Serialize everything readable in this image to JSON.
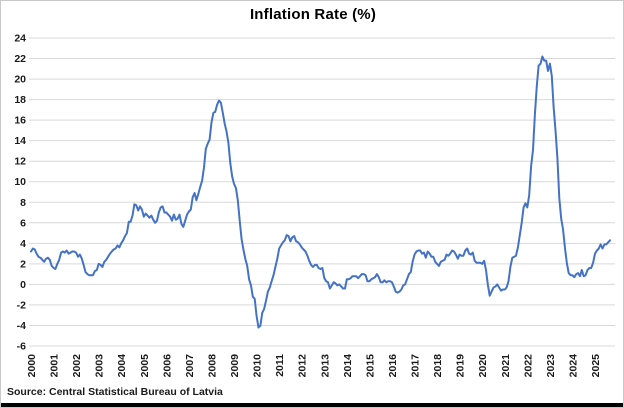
{
  "title": "Inflation Rate (%)",
  "source": "Source: Central Statistical Bureau of Latvia",
  "colors": {
    "line": "#4472C4",
    "gridline": "#D9D9D9",
    "text": "#1a1a1a",
    "background": "#FFFFFF",
    "bottom_border": "#000000"
  },
  "chart_data": {
    "type": "line",
    "title": "Inflation Rate (%)",
    "xlabel": "",
    "ylabel": "",
    "legend": "none",
    "grid": "horizontal",
    "ylim": [
      -6,
      24
    ],
    "y_ticks": [
      24,
      22,
      20,
      18,
      16,
      14,
      12,
      10,
      8,
      6,
      4,
      2,
      0,
      -2,
      -4,
      -6
    ],
    "x_tick_labels": [
      "2000",
      "2001",
      "2002",
      "2003",
      "2004",
      "2005",
      "2006",
      "2007",
      "2008",
      "2009",
      "2010",
      "2011",
      "2012",
      "2013",
      "2014",
      "2015",
      "2016",
      "2017",
      "2018",
      "2019",
      "2020",
      "2021",
      "2022",
      "2023",
      "2024",
      "2025"
    ],
    "frequency": "monthly",
    "start_year": 2000,
    "start_month": 1,
    "series_name": "Inflation Rate (%)",
    "values_by_year": {
      "2000": [
        3.2,
        3.5,
        3.4,
        3.0,
        2.7,
        2.6,
        2.4,
        2.2,
        2.5,
        2.6,
        2.4,
        1.8
      ],
      "2001": [
        1.6,
        1.5,
        2.0,
        2.4,
        3.1,
        3.2,
        3.1,
        3.3,
        3.0,
        3.1,
        3.2,
        3.2
      ],
      "2002": [
        3.1,
        2.7,
        2.9,
        2.5,
        1.9,
        1.2,
        1.0,
        0.9,
        0.9,
        0.9,
        1.3,
        1.4
      ],
      "2003": [
        2.0,
        1.9,
        1.7,
        2.2,
        2.4,
        2.7,
        3.0,
        3.2,
        3.4,
        3.5,
        3.8,
        3.6
      ],
      "2004": [
        4.0,
        4.3,
        4.7,
        5.0,
        6.1,
        6.1,
        6.7,
        7.8,
        7.7,
        7.2,
        7.6,
        7.3
      ],
      "2005": [
        6.6,
        6.9,
        6.7,
        6.5,
        6.7,
        6.3,
        6.0,
        6.2,
        7.0,
        7.5,
        7.6,
        7.0
      ],
      "2006": [
        7.0,
        6.8,
        6.6,
        6.2,
        6.8,
        6.3,
        6.4,
        6.8,
        5.9,
        5.6,
        6.2,
        6.8
      ],
      "2007": [
        7.1,
        7.3,
        8.5,
        8.9,
        8.2,
        8.8,
        9.5,
        10.1,
        11.4,
        13.2,
        13.7,
        14.1
      ],
      "2008": [
        15.8,
        16.7,
        16.8,
        17.5,
        17.9,
        17.7,
        16.7,
        15.7,
        14.9,
        13.8,
        11.8,
        10.5
      ],
      "2009": [
        9.8,
        9.4,
        8.2,
        6.2,
        4.4,
        3.4,
        2.5,
        1.8,
        0.5,
        -0.1,
        -1.2,
        -1.4
      ],
      "2010": [
        -3.1,
        -4.2,
        -4.0,
        -2.8,
        -2.4,
        -1.6,
        -0.7,
        -0.3,
        0.3,
        0.9,
        1.7,
        2.5
      ],
      "2011": [
        3.5,
        3.8,
        4.1,
        4.3,
        4.8,
        4.7,
        4.2,
        4.6,
        4.7,
        4.2,
        4.1,
        3.9
      ],
      "2012": [
        3.6,
        3.4,
        3.2,
        2.8,
        2.3,
        1.9,
        1.7,
        1.9,
        1.9,
        1.6,
        1.5,
        1.6
      ],
      "2013": [
        0.6,
        0.3,
        0.2,
        -0.4,
        -0.1,
        0.2,
        0.1,
        -0.1,
        0.0,
        -0.2,
        -0.4,
        -0.4
      ],
      "2014": [
        0.5,
        0.5,
        0.6,
        0.8,
        0.8,
        0.8,
        0.6,
        0.8,
        1.0,
        1.0,
        0.9,
        0.3
      ],
      "2015": [
        0.3,
        0.5,
        0.6,
        0.7,
        1.0,
        0.7,
        0.2,
        0.2,
        0.4,
        0.2,
        0.3,
        0.3
      ],
      "2016": [
        0.2,
        -0.2,
        -0.7,
        -0.8,
        -0.7,
        -0.5,
        -0.1,
        0.0,
        0.5,
        1.0,
        1.2,
        2.2
      ],
      "2017": [
        2.9,
        3.2,
        3.3,
        3.3,
        3.0,
        3.1,
        2.6,
        3.2,
        3.0,
        2.7,
        2.7,
        2.2
      ],
      "2018": [
        2.0,
        1.8,
        2.2,
        2.3,
        2.4,
        2.9,
        2.8,
        3.0,
        3.3,
        3.2,
        2.9,
        2.5
      ],
      "2019": [
        2.9,
        2.8,
        2.8,
        3.3,
        3.5,
        3.0,
        2.9,
        3.1,
        2.3,
        2.1,
        2.1,
        2.1
      ],
      "2020": [
        2.0,
        2.3,
        1.4,
        0.0,
        -1.1,
        -0.7,
        -0.3,
        -0.2,
        0.0,
        -0.3,
        -0.6,
        -0.5
      ],
      "2021": [
        -0.5,
        -0.3,
        0.3,
        1.7,
        2.6,
        2.7,
        2.8,
        3.6,
        4.8,
        6.0,
        7.5,
        7.9
      ],
      "2022": [
        7.5,
        8.7,
        11.5,
        13.1,
        16.4,
        19.2,
        21.3,
        21.5,
        22.2,
        21.8,
        21.8,
        20.8
      ],
      "2023": [
        21.5,
        20.3,
        17.3,
        15.0,
        12.3,
        8.4,
        6.4,
        5.4,
        3.6,
        2.1,
        1.1,
        0.9
      ],
      "2024": [
        0.9,
        0.7,
        1.0,
        1.1,
        0.8,
        1.4,
        0.8,
        0.9,
        1.4,
        1.6,
        1.6,
        2.1
      ],
      "2025": [
        3.0,
        3.3,
        3.5,
        3.9,
        3.5,
        3.9,
        3.9,
        4.1,
        4.3
      ]
    }
  }
}
